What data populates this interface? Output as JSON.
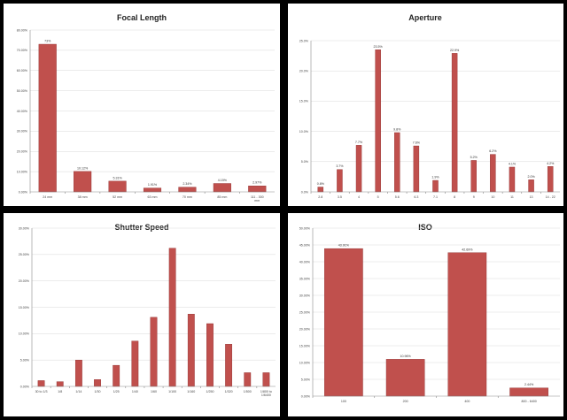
{
  "chart_data": [
    {
      "id": "focal",
      "type": "bar",
      "title": "Focal Length",
      "categories": [
        "24 mm",
        "38 mm",
        "52 mm",
        "63 mm",
        "70 mm",
        "85 mm",
        "111 - 300 mm"
      ],
      "values": [
        73,
        10.12,
        5.31,
        1.91,
        2.34,
        4.15,
        2.97
      ],
      "value_labels": [
        "73%",
        "10.12%",
        "5.31%",
        "1.91%",
        "2.34%",
        "4.15%",
        "2.97%"
      ],
      "ylim": [
        0,
        80
      ],
      "yticks": [
        0,
        10,
        20,
        30,
        40,
        50,
        60,
        70,
        80
      ],
      "ytick_labels": [
        "0.00%",
        "10.00%",
        "20.00%",
        "30.00%",
        "40.00%",
        "50.00%",
        "60.00%",
        "70.00%",
        "80.00%"
      ],
      "grid": true,
      "colors": {
        "bar": "#C0504D",
        "bar_edge": "#8E2B2B"
      }
    },
    {
      "id": "aperture",
      "type": "bar",
      "title": "Aperture",
      "categories": [
        "2.8",
        "3.5",
        "4",
        "5",
        "5.6",
        "6.3",
        "7.1",
        "8",
        "9",
        "10",
        "11",
        "13",
        "14 - 22"
      ],
      "values": [
        0.8,
        3.7,
        7.7,
        23.5,
        9.8,
        7.6,
        1.9,
        22.9,
        5.2,
        6.2,
        4.1,
        2.0,
        4.2
      ],
      "value_labels": [
        "0.8%",
        "3.7%",
        "7.7%",
        "23.5%",
        "9.8%",
        "7.6%",
        "1.9%",
        "22.9%",
        "5.2%",
        "6.2%",
        "4.1%",
        "2.0%",
        "4.2%"
      ],
      "ylim": [
        0,
        25
      ],
      "yticks": [
        0,
        5,
        10,
        15,
        20,
        25
      ],
      "ytick_labels": [
        "0.0%",
        "5.0%",
        "10.0%",
        "15.0%",
        "20.0%",
        "25.0%"
      ],
      "grid": true,
      "colors": {
        "bar": "#C0504D",
        "bar_edge": "#8E2B2B"
      }
    },
    {
      "id": "shutter",
      "type": "bar",
      "title": "Shutter Speed",
      "categories": [
        "30 to 1/3",
        "1/8",
        "1/14",
        "1/30",
        "1/25",
        "1/40",
        "1/60",
        "1/100",
        "1/160",
        "1/250",
        "1/320",
        "1/500",
        "1/800 to 1/6400"
      ],
      "values": [
        1.1,
        0.9,
        5.0,
        1.3,
        4.0,
        8.6,
        13.1,
        26.2,
        13.7,
        11.9,
        8.0,
        2.6,
        2.6
      ],
      "value_labels": [],
      "ylim": [
        0,
        30
      ],
      "yticks": [
        0,
        5,
        10,
        15,
        20,
        25,
        30
      ],
      "ytick_labels": [
        "0.00%",
        "5.00%",
        "10.00%",
        "15.00%",
        "20.00%",
        "25.00%",
        "30.00%"
      ],
      "grid": true,
      "colors": {
        "bar": "#C0504D",
        "bar_edge": "#8E2B2B"
      }
    },
    {
      "id": "iso",
      "type": "bar",
      "title": "ISO",
      "categories": [
        "100",
        "200",
        "400",
        "800 - 6400"
      ],
      "values": [
        43.91,
        10.96,
        42.69,
        2.44
      ],
      "value_labels": [
        "43.91%",
        "10.96%",
        "42.69%",
        "2.44%"
      ],
      "ylim": [
        0,
        50
      ],
      "yticks": [
        0,
        5,
        10,
        15,
        20,
        25,
        30,
        35,
        40,
        45,
        50
      ],
      "ytick_labels": [
        "0.00%",
        "5.00%",
        "10.00%",
        "15.00%",
        "20.00%",
        "25.00%",
        "30.00%",
        "35.00%",
        "40.00%",
        "45.00%",
        "50.00%"
      ],
      "grid": true,
      "colors": {
        "bar": "#C0504D",
        "bar_edge": "#8E2B2B"
      }
    }
  ]
}
